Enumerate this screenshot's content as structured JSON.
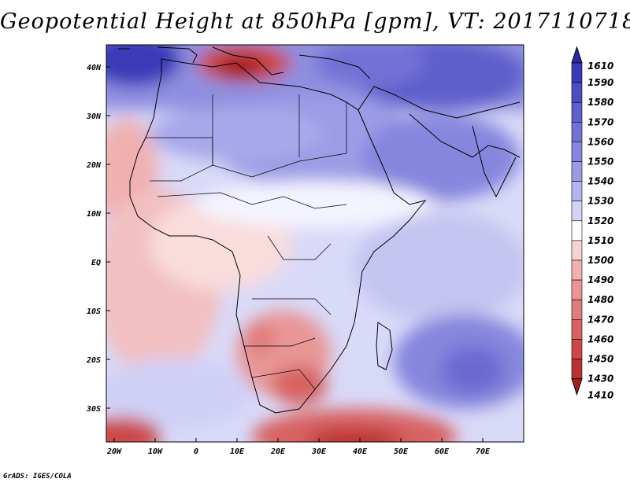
{
  "title": "Geopotential Height at 850hPa [gpm], VT: 2017110718",
  "credit": "GrADS: IGES/COLA",
  "lat_labels": [
    "40N",
    "30N",
    "20N",
    "10N",
    "EQ",
    "10S",
    "20S",
    "30S"
  ],
  "lon_labels": [
    "20W",
    "10W",
    "0",
    "10E",
    "20E",
    "30E",
    "40E",
    "50E",
    "60E",
    "70E"
  ],
  "colorbar": {
    "labels": [
      "1610",
      "1590",
      "1580",
      "1570",
      "1560",
      "1550",
      "1540",
      "1530",
      "1520",
      "1510",
      "1500",
      "1490",
      "1480",
      "1470",
      "1460",
      "1450",
      "1430",
      "1410"
    ],
    "colors": [
      "#2a2aa6",
      "#3a3ab8",
      "#4d4dc4",
      "#5f5fcc",
      "#7272d6",
      "#8686de",
      "#9c9ce6",
      "#b4b4ee",
      "#d2d2f6",
      "#ffffff",
      "#f8d2d2",
      "#f0b0b0",
      "#e89696",
      "#e07c7c",
      "#d86262",
      "#cc4848",
      "#bb3030",
      "#a51e1e"
    ]
  },
  "colors": {
    "high": "#2a2aa6",
    "mid": "#ffffff",
    "low": "#a51e1e"
  }
}
